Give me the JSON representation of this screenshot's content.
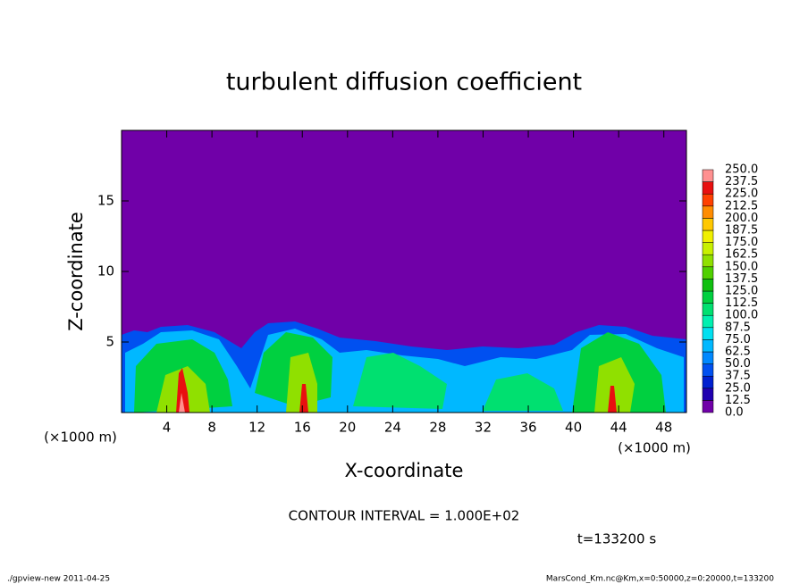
{
  "chart_data": {
    "type": "contour",
    "title": "turbulent diffusion coefficient",
    "x_label": "X-coordinate",
    "y_label": "Z-coordinate",
    "x_unit": "(×1000 m)",
    "xlim": [
      0,
      50
    ],
    "xticks": [
      4,
      8,
      12,
      16,
      20,
      24,
      28,
      32,
      36,
      40,
      44,
      48
    ],
    "ylim": [
      0,
      20
    ],
    "yticks": [
      5,
      10,
      15
    ],
    "colorbar": {
      "levels": [
        {
          "value": 0,
          "label": "0.0"
        },
        {
          "value": 12.5,
          "label": "12.5"
        },
        {
          "value": 25,
          "label": "25.0"
        },
        {
          "value": 37.5,
          "label": "37.5"
        },
        {
          "value": 50,
          "label": "50.0"
        },
        {
          "value": 62.5,
          "label": "62.5"
        },
        {
          "value": 75,
          "label": "75.0"
        },
        {
          "value": 87.5,
          "label": "87.5"
        },
        {
          "value": 100,
          "label": "100.0"
        },
        {
          "value": 112.5,
          "label": "112.5"
        },
        {
          "value": 125,
          "label": "125.0"
        },
        {
          "value": 137.5,
          "label": "137.5"
        },
        {
          "value": 150,
          "label": "150.0"
        },
        {
          "value": 162.5,
          "label": "162.5"
        },
        {
          "value": 175,
          "label": "175.0"
        },
        {
          "value": 187.5,
          "label": "187.5"
        },
        {
          "value": 200,
          "label": "200.0"
        },
        {
          "value": 212.5,
          "label": "212.5"
        },
        {
          "value": 225,
          "label": "225.0"
        },
        {
          "value": 237.5,
          "label": "237.5"
        },
        {
          "value": 250,
          "label": "250.0"
        }
      ],
      "colors": [
        "#7000a8",
        "#2000b0",
        "#0020d0",
        "#0050f0",
        "#0088ff",
        "#00b8ff",
        "#00e0f0",
        "#00f0b0",
        "#00e070",
        "#00d040",
        "#10c010",
        "#50d000",
        "#90e000",
        "#c8f000",
        "#f0f000",
        "#ffc800",
        "#ff8c00",
        "#ff4000",
        "#e81010",
        "#ff9090"
      ]
    },
    "contour_interval": "CONTOUR INTERVAL = 1.000E+02",
    "time_label": "t=133200 s",
    "footer_left": "./gpview-new   2011-04-25",
    "footer_right": "MarsCond_Km.nc@Km,x=0:50000,z=0:20000,t=133200"
  }
}
